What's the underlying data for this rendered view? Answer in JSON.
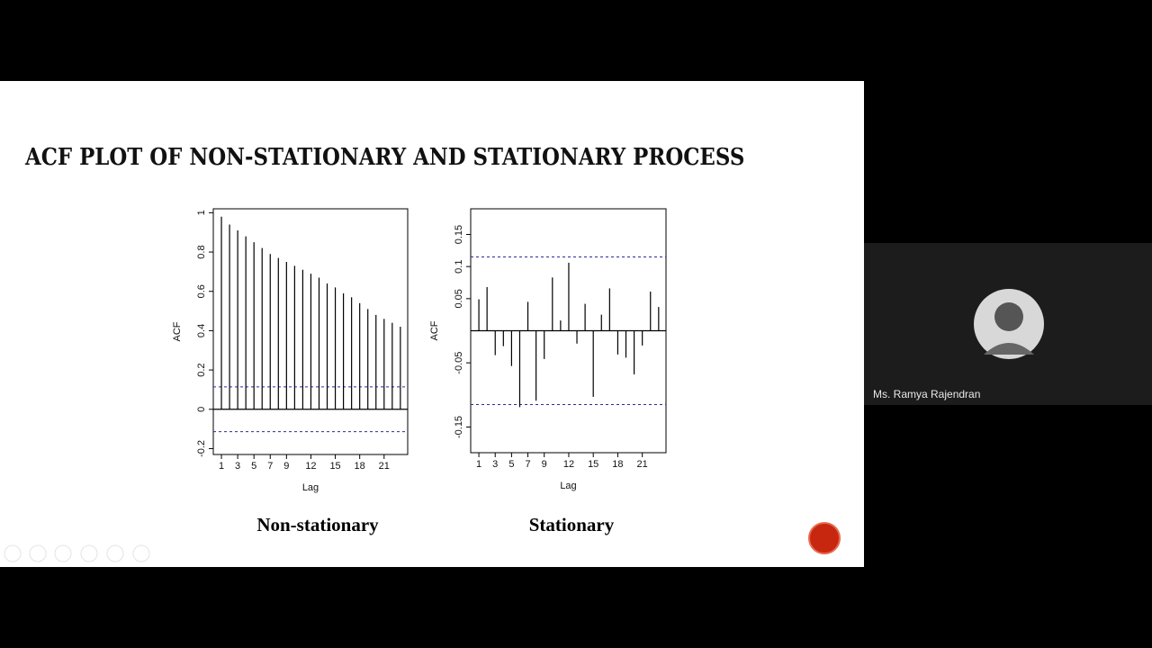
{
  "slide": {
    "title": "ACF PLOT OF NON-STATIONARY AND STATIONARY  PROCESS"
  },
  "chart_data": [
    {
      "type": "stem",
      "caption": "Non-stationary",
      "x_label": "Lag",
      "y_label": "ACF",
      "x": [
        1,
        2,
        3,
        4,
        5,
        6,
        7,
        8,
        9,
        10,
        11,
        12,
        13,
        14,
        15,
        16,
        17,
        18,
        19,
        20,
        21,
        22,
        23
      ],
      "values": [
        0.98,
        0.94,
        0.91,
        0.88,
        0.85,
        0.82,
        0.79,
        0.77,
        0.75,
        0.73,
        0.71,
        0.69,
        0.67,
        0.64,
        0.62,
        0.59,
        0.57,
        0.54,
        0.51,
        0.48,
        0.46,
        0.44,
        0.42
      ],
      "color": "#000000",
      "confidence": 0.114,
      "confidence_color": "#2a2aa0",
      "xlim": [
        0,
        23.9
      ],
      "xticks": [
        1,
        3,
        5,
        7,
        9,
        12,
        15,
        18,
        21
      ],
      "ylim": [
        -0.23,
        1.02
      ],
      "yticks": [
        -0.2,
        0.0,
        0.2,
        0.4,
        0.6,
        0.8,
        1.0
      ]
    },
    {
      "type": "stem",
      "caption": "Stationary",
      "x_label": "Lag",
      "y_label": "ACF",
      "x": [
        1,
        2,
        3,
        4,
        5,
        6,
        7,
        8,
        9,
        10,
        11,
        12,
        13,
        14,
        15,
        16,
        17,
        18,
        19,
        20,
        21,
        22,
        23
      ],
      "values": [
        0.049,
        0.068,
        -0.038,
        -0.024,
        -0.055,
        -0.119,
        0.045,
        -0.109,
        -0.044,
        0.083,
        0.016,
        0.106,
        -0.02,
        0.042,
        -0.103,
        0.025,
        0.066,
        -0.037,
        -0.042,
        -0.068,
        -0.023,
        0.061,
        0.037
      ],
      "color": "#000000",
      "confidence": 0.115,
      "confidence_color": "#2a2aa0",
      "xlim": [
        0,
        23.9
      ],
      "xticks": [
        1,
        3,
        5,
        7,
        9,
        12,
        15,
        18,
        21
      ],
      "ylim": [
        -0.19,
        0.19
      ],
      "yticks": [
        -0.15,
        -0.05,
        0.05,
        0.1,
        0.15
      ]
    }
  ],
  "participant": {
    "name": "Ms. Ramya Rajendran"
  }
}
